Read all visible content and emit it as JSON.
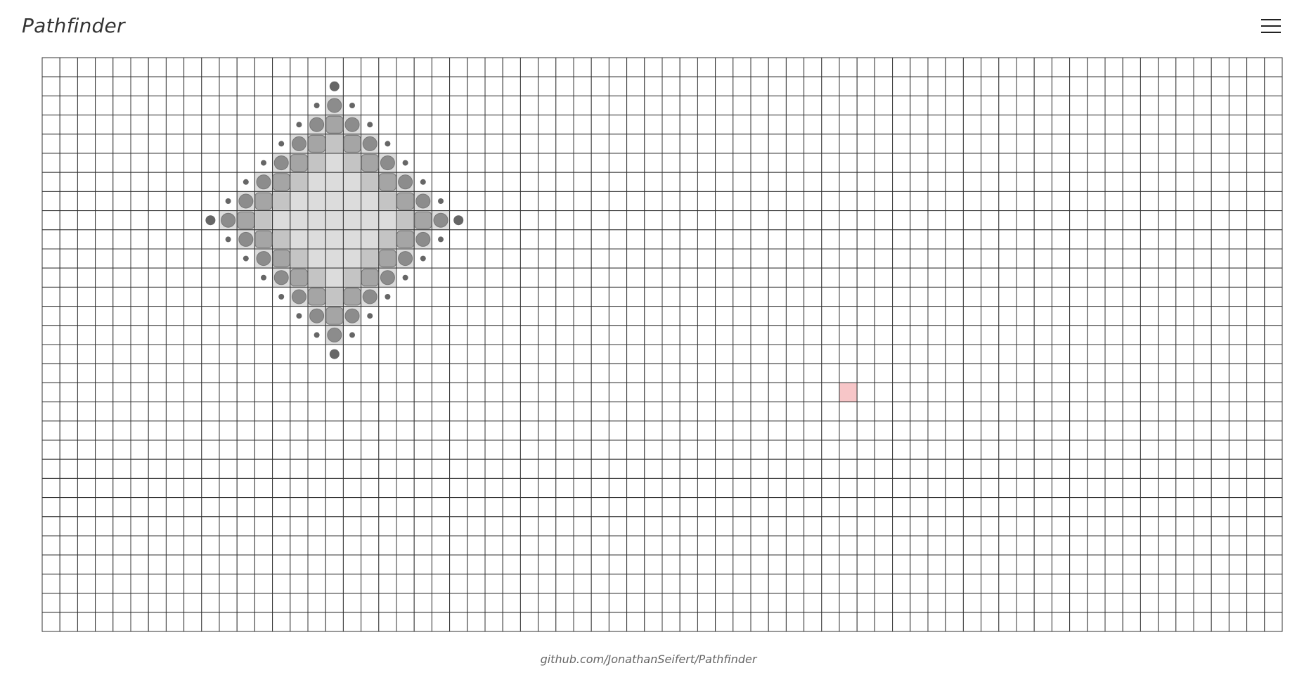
{
  "header": {
    "title": "Pathfinder",
    "menu_icon": "hamburger-menu-icon"
  },
  "grid": {
    "columns": 70,
    "rows": 30,
    "cell_colors": {
      "empty": "#ffffff",
      "line": "#333333",
      "visited": "#dcdcdc",
      "frontier": "#8c8c8c",
      "target": "#f7c6c8"
    },
    "start_cell": {
      "col": 16,
      "row": 8
    },
    "target_cell": {
      "col": 45,
      "row": 17
    },
    "explored_radius": 7
  },
  "footer": {
    "link_text": "github.com/JonathanSeifert/Pathfinder"
  }
}
